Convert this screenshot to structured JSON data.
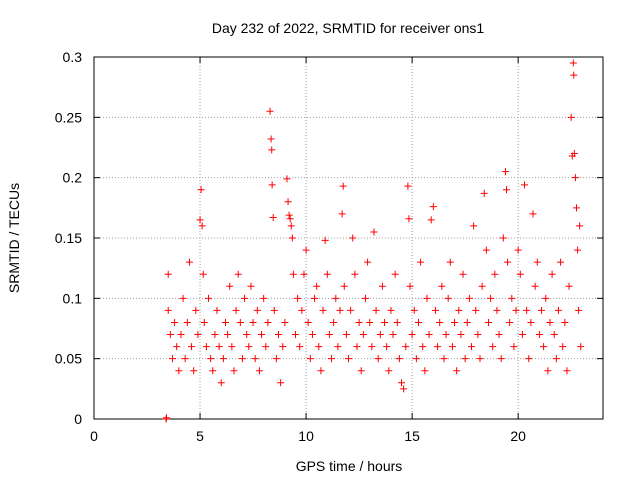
{
  "chart_data": {
    "type": "scatter",
    "title": "Day 232 of 2022, SRMTID for receiver ons1",
    "xlabel": "GPS time / hours",
    "ylabel": "SRMTID / TECUs",
    "xlim": [
      0,
      24
    ],
    "ylim": [
      0,
      0.3
    ],
    "x_ticks": [
      0,
      5,
      10,
      15,
      20
    ],
    "x_tick_labels": [
      "0",
      "5",
      "10",
      "15",
      "20"
    ],
    "y_ticks": [
      0,
      0.05,
      0.1,
      0.15,
      0.2,
      0.25,
      0.3
    ],
    "y_tick_labels": [
      "0",
      "0.05",
      "0.1",
      "0.15",
      "0.2",
      "0.25",
      "0.3"
    ],
    "grid": true,
    "marker": "plus",
    "color": "#ff0000",
    "series": [
      {
        "name": "SRMTID",
        "points": [
          [
            3.4,
            0.0
          ],
          [
            3.42,
            0.001
          ],
          [
            3.5,
            0.12
          ],
          [
            3.5,
            0.09
          ],
          [
            3.6,
            0.07
          ],
          [
            3.7,
            0.05
          ],
          [
            3.8,
            0.08
          ],
          [
            3.9,
            0.06
          ],
          [
            4.0,
            0.04
          ],
          [
            4.1,
            0.07
          ],
          [
            4.2,
            0.1
          ],
          [
            4.3,
            0.05
          ],
          [
            4.4,
            0.08
          ],
          [
            4.5,
            0.13
          ],
          [
            4.6,
            0.06
          ],
          [
            4.7,
            0.04
          ],
          [
            4.8,
            0.09
          ],
          [
            4.9,
            0.07
          ],
          [
            5.0,
            0.165
          ],
          [
            5.05,
            0.19
          ],
          [
            5.1,
            0.16
          ],
          [
            5.15,
            0.12
          ],
          [
            5.2,
            0.08
          ],
          [
            5.3,
            0.06
          ],
          [
            5.4,
            0.1
          ],
          [
            5.5,
            0.05
          ],
          [
            5.6,
            0.04
          ],
          [
            5.7,
            0.07
          ],
          [
            5.8,
            0.09
          ],
          [
            5.9,
            0.06
          ],
          [
            6.0,
            0.03
          ],
          [
            6.1,
            0.05
          ],
          [
            6.2,
            0.08
          ],
          [
            6.3,
            0.07
          ],
          [
            6.4,
            0.11
          ],
          [
            6.5,
            0.06
          ],
          [
            6.6,
            0.04
          ],
          [
            6.7,
            0.09
          ],
          [
            6.8,
            0.12
          ],
          [
            6.9,
            0.08
          ],
          [
            7.0,
            0.05
          ],
          [
            7.1,
            0.1
          ],
          [
            7.2,
            0.07
          ],
          [
            7.3,
            0.06
          ],
          [
            7.4,
            0.11
          ],
          [
            7.5,
            0.08
          ],
          [
            7.6,
            0.05
          ],
          [
            7.7,
            0.09
          ],
          [
            7.8,
            0.04
          ],
          [
            7.9,
            0.07
          ],
          [
            8.0,
            0.1
          ],
          [
            8.1,
            0.06
          ],
          [
            8.2,
            0.08
          ],
          [
            8.3,
            0.255
          ],
          [
            8.35,
            0.232
          ],
          [
            8.38,
            0.223
          ],
          [
            8.4,
            0.194
          ],
          [
            8.45,
            0.167
          ],
          [
            8.5,
            0.09
          ],
          [
            8.6,
            0.05
          ],
          [
            8.7,
            0.07
          ],
          [
            8.8,
            0.03
          ],
          [
            8.9,
            0.06
          ],
          [
            9.0,
            0.08
          ],
          [
            9.1,
            0.199
          ],
          [
            9.15,
            0.18
          ],
          [
            9.2,
            0.169
          ],
          [
            9.25,
            0.166
          ],
          [
            9.3,
            0.16
          ],
          [
            9.35,
            0.15
          ],
          [
            9.4,
            0.12
          ],
          [
            9.5,
            0.07
          ],
          [
            9.6,
            0.1
          ],
          [
            9.7,
            0.06
          ],
          [
            9.8,
            0.09
          ],
          [
            9.9,
            0.12
          ],
          [
            10.0,
            0.14
          ],
          [
            10.1,
            0.08
          ],
          [
            10.2,
            0.05
          ],
          [
            10.3,
            0.07
          ],
          [
            10.4,
            0.1
          ],
          [
            10.5,
            0.11
          ],
          [
            10.6,
            0.06
          ],
          [
            10.7,
            0.04
          ],
          [
            10.8,
            0.09
          ],
          [
            10.9,
            0.148
          ],
          [
            11.0,
            0.12
          ],
          [
            11.1,
            0.07
          ],
          [
            11.2,
            0.05
          ],
          [
            11.3,
            0.08
          ],
          [
            11.4,
            0.1
          ],
          [
            11.5,
            0.06
          ],
          [
            11.6,
            0.09
          ],
          [
            11.7,
            0.17
          ],
          [
            11.75,
            0.193
          ],
          [
            11.8,
            0.11
          ],
          [
            11.9,
            0.07
          ],
          [
            12.0,
            0.05
          ],
          [
            12.1,
            0.09
          ],
          [
            12.2,
            0.15
          ],
          [
            12.3,
            0.12
          ],
          [
            12.4,
            0.06
          ],
          [
            12.5,
            0.08
          ],
          [
            12.6,
            0.04
          ],
          [
            12.7,
            0.07
          ],
          [
            12.8,
            0.1
          ],
          [
            12.9,
            0.13
          ],
          [
            13.0,
            0.08
          ],
          [
            13.1,
            0.06
          ],
          [
            13.2,
            0.155
          ],
          [
            13.3,
            0.09
          ],
          [
            13.4,
            0.05
          ],
          [
            13.5,
            0.07
          ],
          [
            13.6,
            0.11
          ],
          [
            13.7,
            0.08
          ],
          [
            13.8,
            0.06
          ],
          [
            13.9,
            0.04
          ],
          [
            14.0,
            0.09
          ],
          [
            14.1,
            0.07
          ],
          [
            14.2,
            0.12
          ],
          [
            14.3,
            0.08
          ],
          [
            14.4,
            0.05
          ],
          [
            14.5,
            0.03
          ],
          [
            14.6,
            0.025
          ],
          [
            14.7,
            0.06
          ],
          [
            14.8,
            0.193
          ],
          [
            14.85,
            0.166
          ],
          [
            14.9,
            0.11
          ],
          [
            15.0,
            0.07
          ],
          [
            15.1,
            0.09
          ],
          [
            15.2,
            0.05
          ],
          [
            15.3,
            0.08
          ],
          [
            15.4,
            0.13
          ],
          [
            15.5,
            0.06
          ],
          [
            15.6,
            0.04
          ],
          [
            15.7,
            0.1
          ],
          [
            15.8,
            0.07
          ],
          [
            15.9,
            0.165
          ],
          [
            16.0,
            0.176
          ],
          [
            16.1,
            0.09
          ],
          [
            16.2,
            0.06
          ],
          [
            16.3,
            0.08
          ],
          [
            16.4,
            0.11
          ],
          [
            16.5,
            0.05
          ],
          [
            16.6,
            0.07
          ],
          [
            16.7,
            0.1
          ],
          [
            16.8,
            0.13
          ],
          [
            16.9,
            0.06
          ],
          [
            17.0,
            0.08
          ],
          [
            17.1,
            0.04
          ],
          [
            17.2,
            0.09
          ],
          [
            17.3,
            0.07
          ],
          [
            17.4,
            0.12
          ],
          [
            17.5,
            0.05
          ],
          [
            17.6,
            0.08
          ],
          [
            17.7,
            0.1
          ],
          [
            17.8,
            0.06
          ],
          [
            17.9,
            0.16
          ],
          [
            18.0,
            0.09
          ],
          [
            18.1,
            0.07
          ],
          [
            18.2,
            0.05
          ],
          [
            18.3,
            0.11
          ],
          [
            18.4,
            0.187
          ],
          [
            18.5,
            0.14
          ],
          [
            18.6,
            0.08
          ],
          [
            18.7,
            0.1
          ],
          [
            18.8,
            0.06
          ],
          [
            18.9,
            0.12
          ],
          [
            19.0,
            0.09
          ],
          [
            19.1,
            0.07
          ],
          [
            19.2,
            0.05
          ],
          [
            19.3,
            0.15
          ],
          [
            19.4,
            0.205
          ],
          [
            19.45,
            0.19
          ],
          [
            19.5,
            0.13
          ],
          [
            19.6,
            0.08
          ],
          [
            19.7,
            0.1
          ],
          [
            19.8,
            0.06
          ],
          [
            19.9,
            0.09
          ],
          [
            20.0,
            0.14
          ],
          [
            20.1,
            0.12
          ],
          [
            20.2,
            0.07
          ],
          [
            20.3,
            0.194
          ],
          [
            20.4,
            0.09
          ],
          [
            20.5,
            0.05
          ],
          [
            20.6,
            0.08
          ],
          [
            20.7,
            0.17
          ],
          [
            20.8,
            0.11
          ],
          [
            20.9,
            0.13
          ],
          [
            21.0,
            0.07
          ],
          [
            21.1,
            0.09
          ],
          [
            21.2,
            0.06
          ],
          [
            21.3,
            0.1
          ],
          [
            21.4,
            0.04
          ],
          [
            21.5,
            0.08
          ],
          [
            21.6,
            0.12
          ],
          [
            21.7,
            0.07
          ],
          [
            21.8,
            0.05
          ],
          [
            21.9,
            0.09
          ],
          [
            22.0,
            0.13
          ],
          [
            22.1,
            0.06
          ],
          [
            22.2,
            0.08
          ],
          [
            22.3,
            0.04
          ],
          [
            22.4,
            0.11
          ],
          [
            22.5,
            0.25
          ],
          [
            22.55,
            0.218
          ],
          [
            22.6,
            0.295
          ],
          [
            22.62,
            0.285
          ],
          [
            22.65,
            0.22
          ],
          [
            22.7,
            0.2
          ],
          [
            22.75,
            0.175
          ],
          [
            22.8,
            0.14
          ],
          [
            22.85,
            0.09
          ],
          [
            22.9,
            0.16
          ],
          [
            22.95,
            0.06
          ]
        ]
      }
    ]
  }
}
